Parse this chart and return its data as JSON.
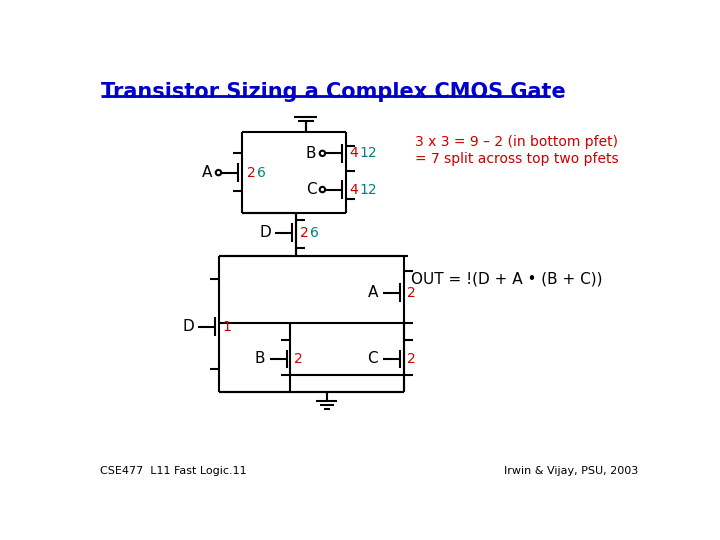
{
  "title": "Transistor Sizing a Complex CMOS Gate",
  "title_color": "#0000CC",
  "title_underline_color": "#0000CC",
  "bg_color": "#FFFFFF",
  "annotation_text_1": "3 x 3 = 9 – 2 (in bottom pfet)",
  "annotation_text_2": "= 7 split across top two pfets",
  "annotation_color": "#CC0000",
  "out_eq": "OUT = !(D + A • (B + C))",
  "out_eq_color": "#000000",
  "footer_left": "CSE477  L11 Fast Logic.11",
  "footer_right": "Irwin & Vijay, PSU, 2003",
  "footer_color": "#000000",
  "red": "#CC0000",
  "teal": "#008080",
  "black": "#000000",
  "lw": 1.5
}
